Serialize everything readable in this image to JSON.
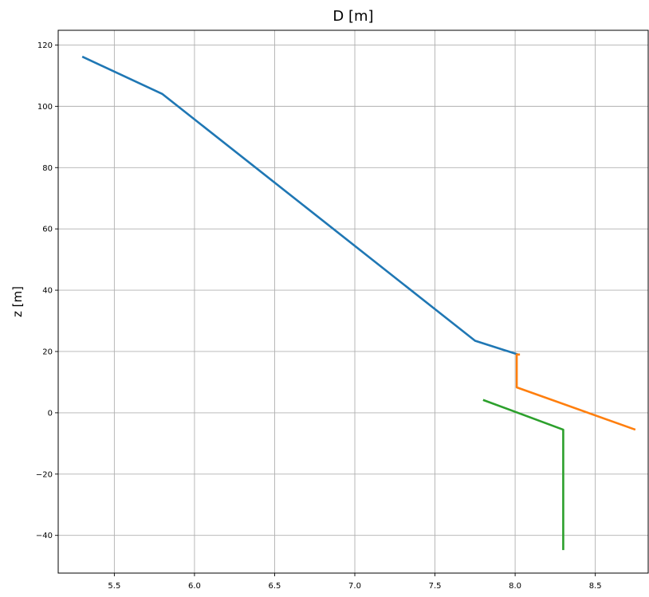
{
  "chart_data": {
    "type": "line",
    "title": "D [m]",
    "xlabel": "",
    "ylabel": "z [m]",
    "xlim": [
      5.15,
      8.83
    ],
    "ylim": [
      -52.3,
      124.8
    ],
    "xticks": [
      5.5,
      6.0,
      6.5,
      7.0,
      7.5,
      8.0,
      8.5
    ],
    "xtick_labels": [
      "5.5",
      "6.0",
      "6.5",
      "7.0",
      "7.5",
      "8.0",
      "8.5"
    ],
    "yticks": [
      -40,
      -20,
      0,
      20,
      40,
      60,
      80,
      100,
      120
    ],
    "ytick_labels": [
      "−40",
      "−20",
      "0",
      "20",
      "40",
      "60",
      "80",
      "100",
      "120"
    ],
    "grid": true,
    "series": [
      {
        "color": "#1f77b4",
        "x": [
          5.3,
          5.8,
          7.75,
          8.02
        ],
        "y": [
          116.2,
          104.0,
          23.5,
          19.0
        ]
      },
      {
        "color": "#ff7f0e",
        "x": [
          8.03,
          8.01,
          8.01,
          8.75
        ],
        "y": [
          19.0,
          19.0,
          8.3,
          -5.5
        ]
      },
      {
        "color": "#2ca02c",
        "x": [
          7.8,
          8.3,
          8.3
        ],
        "y": [
          4.2,
          -5.5,
          -44.8
        ]
      }
    ]
  }
}
